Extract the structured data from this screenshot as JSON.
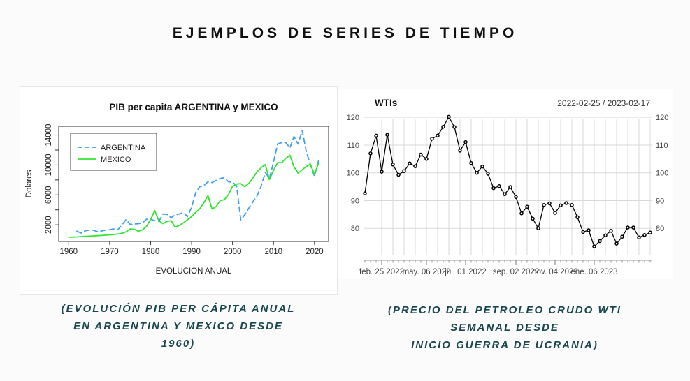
{
  "page": {
    "title": "EJEMPLOS DE SERIES DE TIEMPO"
  },
  "captions": {
    "left": "(EVOLUCIÓN PIB PER CÁPITA ANUAL\nEN ARGENTINA Y MEXICO DESDE\n1960)",
    "right": "(PRECIO DEL PETROLEO CRUDO WTI\nSEMANAL DESDE\nINICIO GUERRA DE UCRANIA)"
  },
  "colors": {
    "background": "#fbfbfb",
    "panel": "#ffffff",
    "caption_text": "#17464e",
    "title_text": "#111111",
    "argentina_line": "#3f9ff2",
    "mexico_line": "#2ee62e",
    "wti_line": "#000000",
    "grid": "#d9d9d9",
    "axis_text": "#333333"
  },
  "chart_data": [
    {
      "type": "line",
      "title": "PIB per capita ARGENTINA y MEXICO",
      "xlabel": "EVOLUCION ANUAL",
      "ylabel": "Dolares",
      "x_ticks": [
        1960,
        1970,
        1980,
        1990,
        2000,
        2010,
        2020
      ],
      "y_ticks": [
        2000,
        6000,
        10000,
        14000
      ],
      "y_minor_ticks": [
        4000,
        8000,
        12000
      ],
      "xlim": [
        1957.56,
        2023.44
      ],
      "ylim": [
        -225,
        15170
      ],
      "grid": false,
      "legend_position": "top-left",
      "legend": [
        {
          "name": "ARGENTINA",
          "color": "#3f9ff2",
          "dashed": true
        },
        {
          "name": "MEXICO",
          "color": "#2ee62e",
          "dashed": false
        }
      ],
      "series": [
        {
          "name": "ARGENTINA",
          "color": "#3f9ff2",
          "dashed": true,
          "x_start": 1962,
          "values": [
            1150,
            900,
            1180,
            1290,
            1280,
            1100,
            1170,
            1300,
            1330,
            1450,
            1330,
            2000,
            2700,
            2050,
            2100,
            2150,
            2250,
            2750,
            2750,
            2550,
            2450,
            3450,
            3400,
            2950,
            3350,
            3450,
            3650,
            3100,
            4350,
            6300,
            7100,
            7250,
            7750,
            7650,
            7950,
            8200,
            8300,
            7750,
            7700,
            7200,
            2650,
            3350,
            4250,
            5100,
            5900,
            7200,
            9000,
            8200,
            10400,
            12800,
            13000,
            13000,
            12300,
            13800,
            12800,
            14600,
            11800,
            10000,
            8500,
            10600
          ]
        },
        {
          "name": "MEXICO",
          "color": "#2ee62e",
          "dashed": false,
          "x_start": 1960,
          "values": [
            345,
            365,
            385,
            415,
            455,
            480,
            510,
            545,
            580,
            620,
            660,
            705,
            765,
            865,
            1060,
            1440,
            1400,
            1150,
            1320,
            1800,
            2700,
            3900,
            2550,
            2150,
            2450,
            2550,
            1700,
            1900,
            2270,
            2680,
            3100,
            3650,
            4150,
            4950,
            5900,
            4100,
            4450,
            5250,
            5350,
            6050,
            7150,
            7450,
            7500,
            7100,
            7550,
            8300,
            9100,
            9650,
            10050,
            8050,
            9300,
            10300,
            10300,
            10900,
            11300,
            9750,
            8900,
            9350,
            9800,
            10100,
            8700,
            10250
          ]
        }
      ]
    },
    {
      "type": "scatter",
      "title": "WTIs",
      "subtitle": "2022-02-25 / 2023-02-17",
      "frequency": "weekly",
      "y_ticks": [
        80,
        90,
        100,
        110,
        120
      ],
      "ylim": [
        70.5,
        120.8
      ],
      "grid": true,
      "x_tick_labels": [
        "feb. 25 2022",
        "may. 06 2022",
        "jul. 01 2022",
        "sep. 02 2022",
        "nov. 04 2022",
        "ene. 06 2023"
      ],
      "x_tick_positions": [
        3,
        11,
        18,
        27,
        34,
        41
      ],
      "x_start_date": "2022-02-25",
      "x_end_date": "2023-02-17",
      "values": [
        92.6,
        107.0,
        113.4,
        100.4,
        113.7,
        103.0,
        99.3,
        100.6,
        103.4,
        102.4,
        106.6,
        105.0,
        112.3,
        113.4,
        116.6,
        120.2,
        116.5,
        108.0,
        111.1,
        103.5,
        100.0,
        102.3,
        99.7,
        94.5,
        95.2,
        92.3,
        94.9,
        91.3,
        85.4,
        87.8,
        83.5,
        80.0,
        88.4,
        89.0,
        85.6,
        88.3,
        89.1,
        88.4,
        84.0,
        78.7,
        79.3,
        73.5,
        75.4,
        77.5,
        79.1,
        74.5,
        77.0,
        80.3,
        80.3,
        76.7,
        77.6,
        78.5
      ]
    }
  ]
}
